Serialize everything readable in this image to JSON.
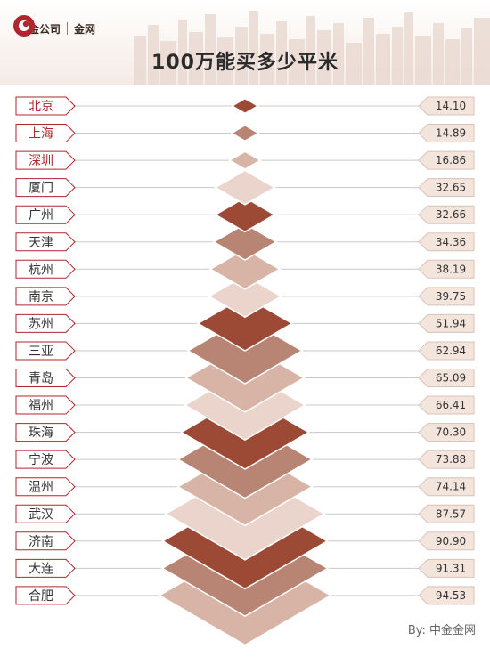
{
  "header": {
    "logo_brand": "中金公司",
    "logo_sub": "金网",
    "title": "100万能买多少平米"
  },
  "colors": {
    "highlight_text": "#b0262e",
    "normal_text": "#333333",
    "label_border": "#b0262e",
    "value_tag_fill": "#f3e5dc",
    "line": "#c9c9c9",
    "diamond_palette": [
      "#9c4a36",
      "#b88575",
      "#d7b4a6",
      "#ead4cb"
    ]
  },
  "chart_data": {
    "type": "bar",
    "title": "100万能买多少平米",
    "categories": [
      "北京",
      "上海",
      "深圳",
      "厦门",
      "广州",
      "天津",
      "杭州",
      "南京",
      "苏州",
      "三亚",
      "青岛",
      "福州",
      "珠海",
      "宁波",
      "温州",
      "武汉",
      "济南",
      "大连",
      "合肥"
    ],
    "values": [
      14.1,
      14.89,
      16.86,
      32.65,
      32.66,
      34.36,
      38.19,
      39.75,
      51.94,
      62.94,
      65.09,
      66.41,
      70.3,
      73.88,
      74.14,
      87.57,
      90.9,
      91.31,
      94.53
    ],
    "value_labels": [
      "14.10",
      "14.89",
      "16.86",
      "32.65",
      "32.66",
      "34.36",
      "38.19",
      "39.75",
      "51.94",
      "62.94",
      "65.09",
      "66.41",
      "70.30",
      "73.88",
      "74.14",
      "87.57",
      "90.90",
      "91.31",
      "94.53"
    ],
    "highlighted": [
      "北京",
      "上海",
      "深圳"
    ]
  },
  "source": "By:  中金金网"
}
